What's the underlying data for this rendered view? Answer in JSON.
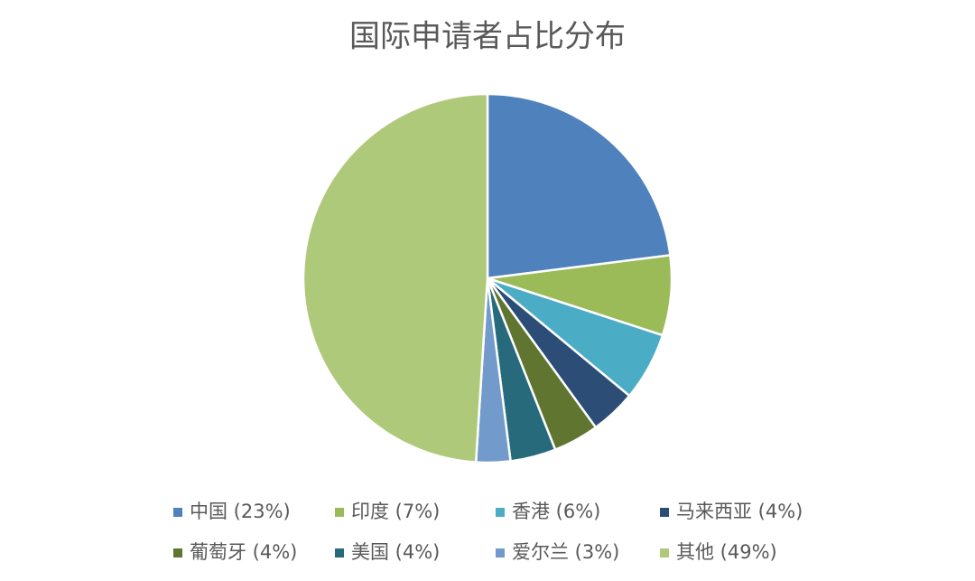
{
  "chart_data": {
    "type": "pie",
    "title": "国际申请者占比分布",
    "categories": [
      "中国 (23%)",
      "印度 (7%)",
      "香港 (6%)",
      "马来西亚 (4%)",
      "葡萄牙  (4%)",
      "美国  (4%)",
      "爱尔兰  (3%)",
      "其他  (49%)"
    ],
    "values": [
      23,
      7,
      6,
      4,
      4,
      4,
      3,
      49
    ],
    "colors": [
      "#4f81bd",
      "#9bbb59",
      "#4bacc6",
      "#2c4d75",
      "#5f7530",
      "#276a7c",
      "#729aca",
      "#afc97a"
    ],
    "legend": "bottom"
  }
}
